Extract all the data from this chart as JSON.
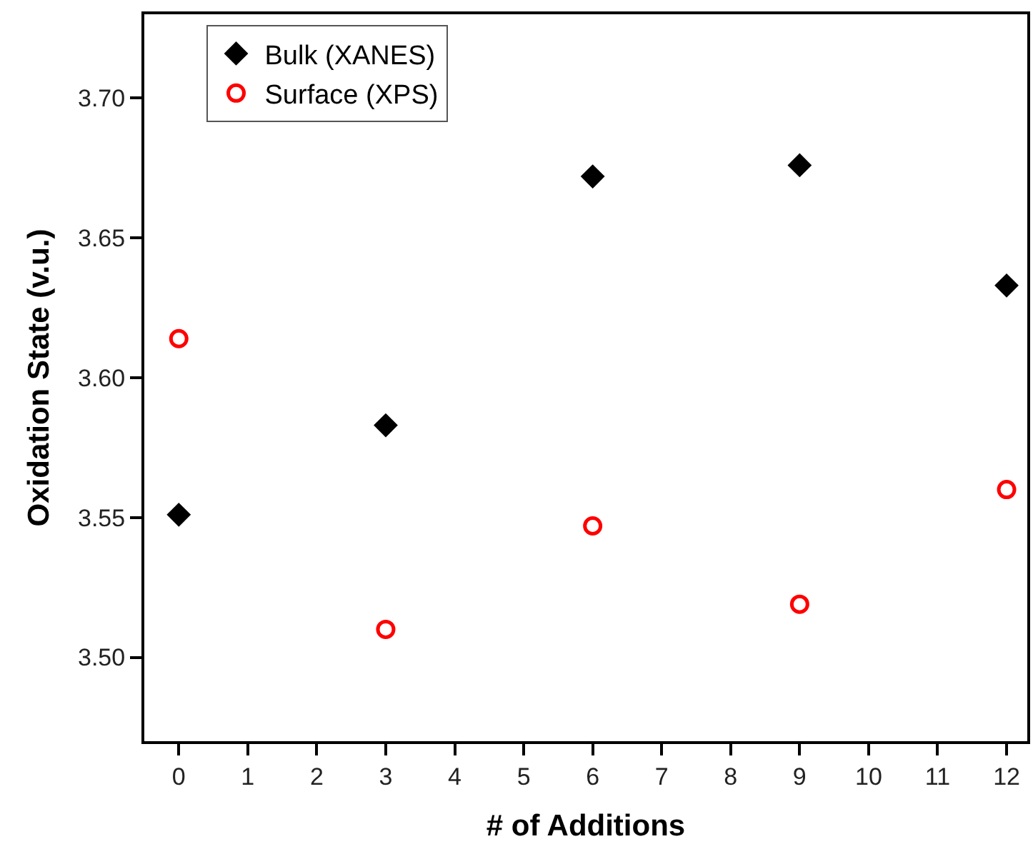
{
  "chart_data": {
    "type": "scatter",
    "xlabel": "# of Additions",
    "ylabel": "Oxidation State (v.u.)",
    "x": [
      0,
      3,
      6,
      9,
      12
    ],
    "series": [
      {
        "name": "Bulk (XANES)",
        "color": "#000000",
        "marker": "diamond",
        "values": [
          3.551,
          3.583,
          3.672,
          3.676,
          3.633
        ]
      },
      {
        "name": "Surface (XPS)",
        "color": "#ff0000",
        "marker": "circle-open",
        "values": [
          3.614,
          3.51,
          3.547,
          3.519,
          3.56
        ]
      }
    ],
    "xlim": [
      -0.5,
      12.3
    ],
    "xticks": [
      0,
      1,
      2,
      3,
      4,
      5,
      6,
      7,
      8,
      9,
      10,
      11,
      12
    ],
    "ylim": [
      3.47,
      3.73
    ],
    "yticks": [
      {
        "value": 3.5,
        "label": "3.50"
      },
      {
        "value": 3.55,
        "label": "3.55"
      },
      {
        "value": 3.6,
        "label": "3.60"
      },
      {
        "value": 3.65,
        "label": "3.65"
      },
      {
        "value": 3.7,
        "label": "3.70"
      }
    ],
    "legend": "top left"
  }
}
